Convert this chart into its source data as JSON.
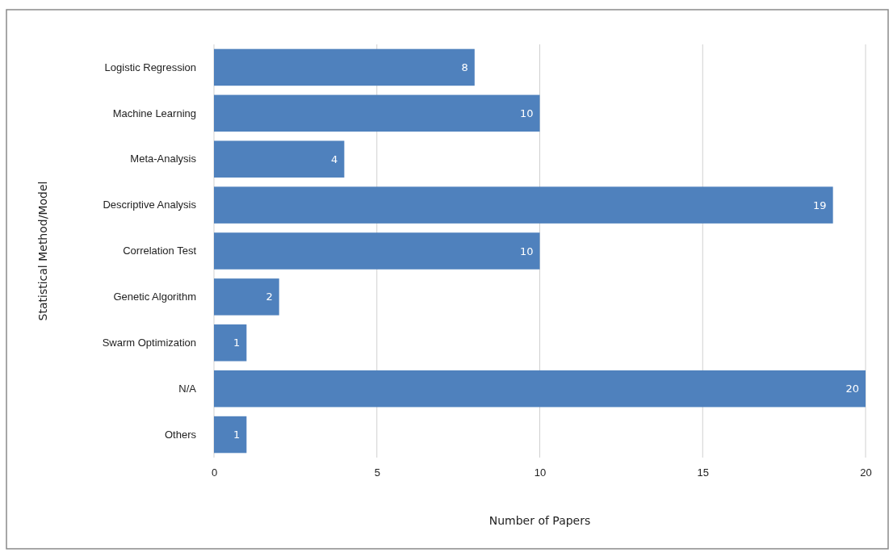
{
  "chart_data": {
    "type": "bar",
    "orientation": "horizontal",
    "xlabel": "Number of Papers",
    "ylabel": "Statistical Method/Model",
    "categories": [
      "Logistic Regression",
      "Machine Learning",
      "Meta-Analysis",
      "Descriptive Analysis",
      "Correlation Test",
      "Genetic Algorithm",
      "Swarm Optimization",
      "N/A",
      "Others"
    ],
    "values": [
      8,
      10,
      4,
      19,
      10,
      2,
      1,
      20,
      1
    ],
    "color": "#4f81bd",
    "xlim": [
      0,
      20
    ],
    "xticks": [
      0,
      5,
      10,
      15,
      20
    ],
    "grid": "x",
    "data_labels": true
  }
}
